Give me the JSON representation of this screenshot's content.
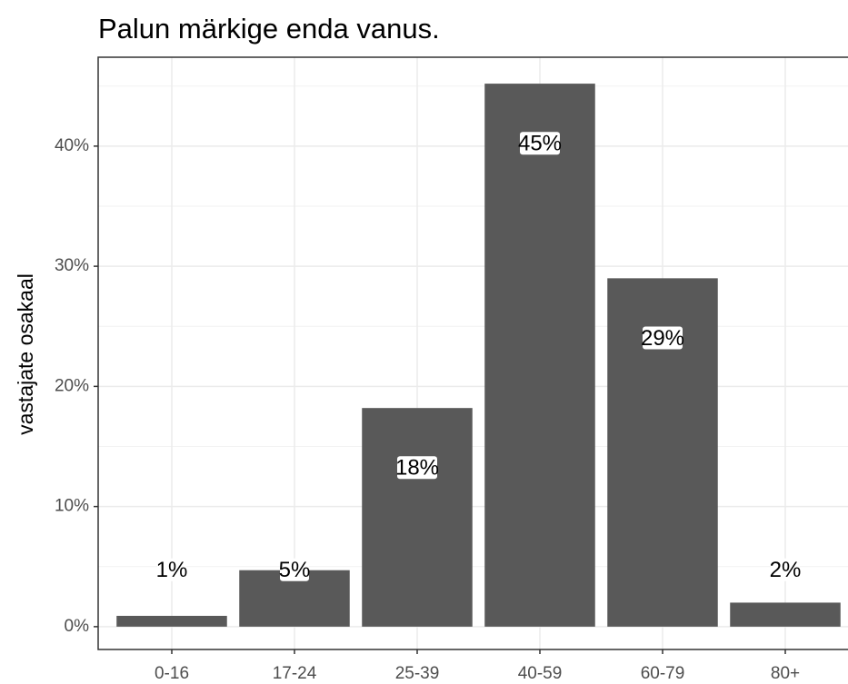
{
  "chart_data": {
    "type": "bar",
    "title": "Palun märkige enda vanus.",
    "y_label": "vastajate osakaal",
    "categories": [
      "0-16",
      "17-24",
      "25-39",
      "40-59",
      "60-79",
      "80+"
    ],
    "values": [
      0.9,
      4.7,
      18.2,
      45.2,
      29.0,
      2.0
    ],
    "value_labels": [
      "1%",
      "5%",
      "18%",
      "45%",
      "29%",
      "2%"
    ],
    "color": "#595959",
    "ylim": [
      -1.9,
      47.4
    ],
    "yticks": [
      {
        "value": 0,
        "label": "0%"
      },
      {
        "value": 10,
        "label": "10%"
      },
      {
        "value": 20,
        "label": "20%"
      },
      {
        "value": 30,
        "label": "30%"
      },
      {
        "value": 40,
        "label": "40%"
      }
    ],
    "grid": true
  }
}
